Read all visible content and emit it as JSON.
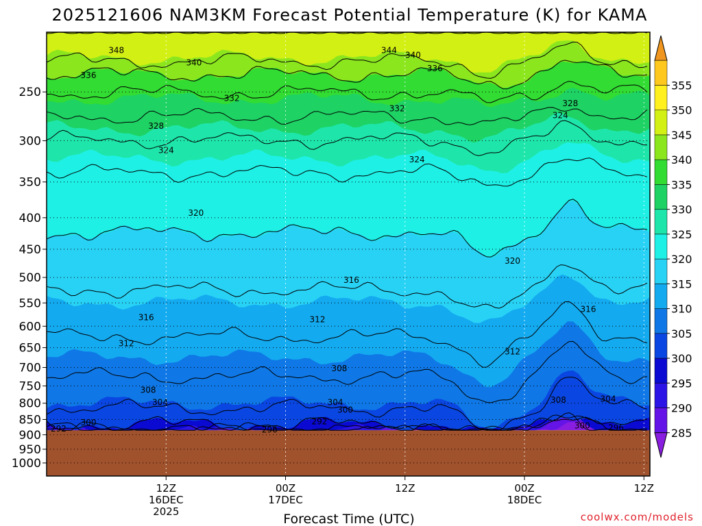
{
  "chart_data": {
    "type": "filled-contour",
    "title": "2025121606 NAM3KM Forecast Potential Temperature (K) for KAMA",
    "xlabel": "Forecast Time (UTC)",
    "ylabel": "",
    "credit": "coolwx.com/models",
    "x_ticks": [
      {
        "hour": 6,
        "lines": [
          "12Z",
          "16DEC",
          "2025"
        ]
      },
      {
        "hour": 12,
        "lines": [
          "00Z",
          "17DEC"
        ]
      },
      {
        "hour": 18,
        "lines": [
          "12Z"
        ]
      },
      {
        "hour": 24,
        "lines": [
          "00Z",
          "18DEC"
        ]
      },
      {
        "hour": 30,
        "lines": [
          "12Z"
        ]
      }
    ],
    "x_range_hours": [
      0,
      30.3
    ],
    "y_axis": {
      "scale": "log-pressure",
      "unit": "hPa",
      "range": [
        1050,
        200
      ],
      "ticks": [
        250,
        300,
        350,
        400,
        450,
        500,
        550,
        600,
        650,
        700,
        750,
        800,
        850,
        900,
        950,
        1000
      ]
    },
    "surface_pressure_hpa": 885,
    "colorbar": {
      "label_unit": "K",
      "levels": [
        285,
        290,
        295,
        300,
        305,
        310,
        315,
        320,
        325,
        330,
        335,
        340,
        345,
        350,
        355
      ],
      "colors": [
        "#8a1ee0",
        "#6414e6",
        "#2d14e6",
        "#0a0ad2",
        "#0a46e1",
        "#0f78e6",
        "#14aaf0",
        "#28d2f5",
        "#1ef0e6",
        "#1ee6aa",
        "#1ed264",
        "#32dc32",
        "#8ce61e",
        "#d2f014",
        "#fff01e",
        "#ffc81e",
        "#f0961e"
      ]
    },
    "profile_at_00Z_17DEC": {
      "pressure_hpa": [
        885,
        875,
        860,
        800,
        700,
        600,
        500,
        400,
        320,
        280,
        240,
        220
      ],
      "theta_k": [
        296,
        298,
        301,
        305,
        309,
        313,
        317,
        321,
        325,
        331,
        338,
        345
      ]
    },
    "contour_labels": [
      {
        "value": "348",
        "hour": 3.5,
        "p": 214
      },
      {
        "value": "344",
        "hour": 17.2,
        "p": 214
      },
      {
        "value": "340",
        "hour": 7.4,
        "p": 224
      },
      {
        "value": "340",
        "hour": 18.4,
        "p": 218
      },
      {
        "value": "336",
        "hour": 2.1,
        "p": 235
      },
      {
        "value": "336",
        "hour": 19.5,
        "p": 229
      },
      {
        "value": "332",
        "hour": 9.3,
        "p": 256
      },
      {
        "value": "332",
        "hour": 17.6,
        "p": 266
      },
      {
        "value": "328",
        "hour": 5.5,
        "p": 284
      },
      {
        "value": "328",
        "hour": 26.3,
        "p": 261
      },
      {
        "value": "324",
        "hour": 6.0,
        "p": 311
      },
      {
        "value": "324",
        "hour": 18.6,
        "p": 322
      },
      {
        "value": "324",
        "hour": 25.8,
        "p": 273
      },
      {
        "value": "320",
        "hour": 7.5,
        "p": 393
      },
      {
        "value": "320",
        "hour": 23.4,
        "p": 470
      },
      {
        "value": "316",
        "hour": 15.3,
        "p": 505
      },
      {
        "value": "316",
        "hour": 5.0,
        "p": 581
      },
      {
        "value": "316",
        "hour": 27.2,
        "p": 563
      },
      {
        "value": "312",
        "hour": 13.6,
        "p": 585
      },
      {
        "value": "312",
        "hour": 4.0,
        "p": 640
      },
      {
        "value": "312",
        "hour": 23.4,
        "p": 660
      },
      {
        "value": "308",
        "hour": 14.7,
        "p": 703
      },
      {
        "value": "308",
        "hour": 5.1,
        "p": 762
      },
      {
        "value": "308",
        "hour": 25.7,
        "p": 790
      },
      {
        "value": "304",
        "hour": 5.7,
        "p": 797
      },
      {
        "value": "304",
        "hour": 14.5,
        "p": 797
      },
      {
        "value": "304",
        "hour": 28.2,
        "p": 787
      },
      {
        "value": "300",
        "hour": 15.0,
        "p": 820
      },
      {
        "value": "300",
        "hour": 2.1,
        "p": 860
      },
      {
        "value": "300",
        "hour": 26.9,
        "p": 870
      },
      {
        "value": "296",
        "hour": 11.2,
        "p": 883
      },
      {
        "value": "296",
        "hour": 28.6,
        "p": 877
      },
      {
        "value": "292",
        "hour": 0.6,
        "p": 880
      },
      {
        "value": "292",
        "hour": 13.7,
        "p": 857
      }
    ]
  }
}
